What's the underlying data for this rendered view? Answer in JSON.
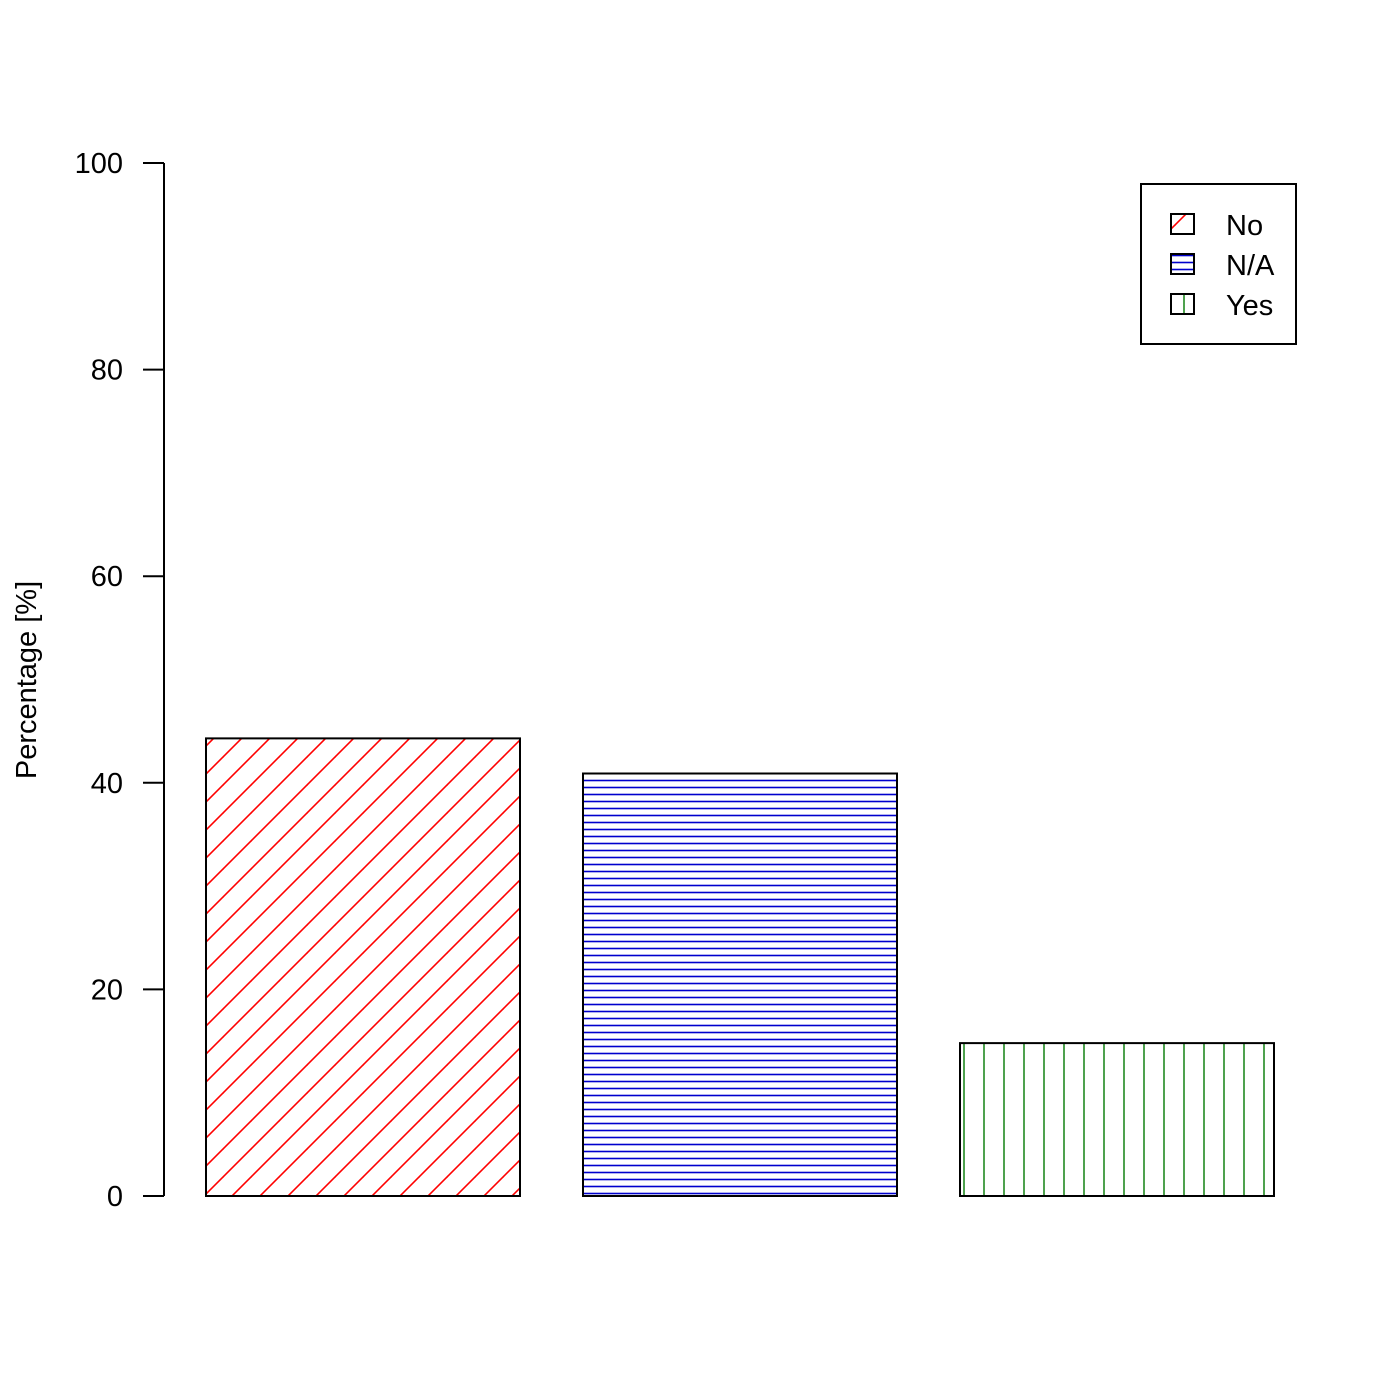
{
  "chart_data": {
    "type": "bar",
    "categories": [
      "No",
      "N/A",
      "Yes"
    ],
    "values": [
      44.3,
      40.9,
      14.8
    ],
    "ylabel": "Percentage [%]",
    "xlabel": "",
    "ylim": [
      0,
      100
    ],
    "yticks": [
      0,
      20,
      40,
      60,
      80,
      100
    ],
    "grid": false,
    "legend": {
      "placement": "top-right",
      "entries": [
        "No",
        "N/A",
        "Yes"
      ]
    },
    "colors": [
      "#ff0000",
      "#0000cd",
      "#228b22"
    ],
    "fill_patterns": [
      "diagonal-hatch",
      "horizontal-hatch",
      "vertical-hatch"
    ]
  }
}
